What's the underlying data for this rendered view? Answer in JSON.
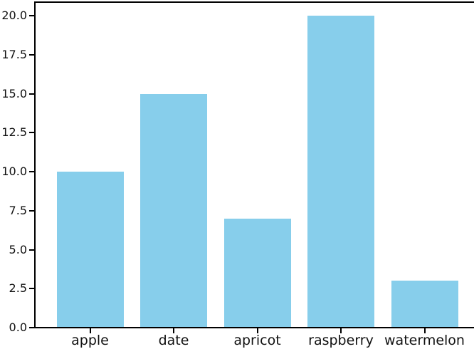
{
  "figure": {
    "background": "#ffffff"
  },
  "chart_data": {
    "type": "bar",
    "title": "",
    "xlabel": "",
    "ylabel": "",
    "categories": [
      "apple",
      "date",
      "apricot",
      "raspberry",
      "watermelon"
    ],
    "values": [
      10,
      15,
      7,
      20,
      3
    ],
    "ylim": [
      0,
      21
    ],
    "yticks": [
      0.0,
      2.5,
      5.0,
      7.5,
      10.0,
      12.5,
      15.0,
      17.5,
      20.0
    ],
    "ytick_labels": [
      "0.0",
      "2.5",
      "5.0",
      "7.5",
      "10.0",
      "12.5",
      "15.0",
      "17.5",
      "20.0"
    ],
    "bar_color": "#87ceeb",
    "spine_color": "#000000",
    "tick_label_color": "#111111",
    "grid": false,
    "legend": "none"
  }
}
